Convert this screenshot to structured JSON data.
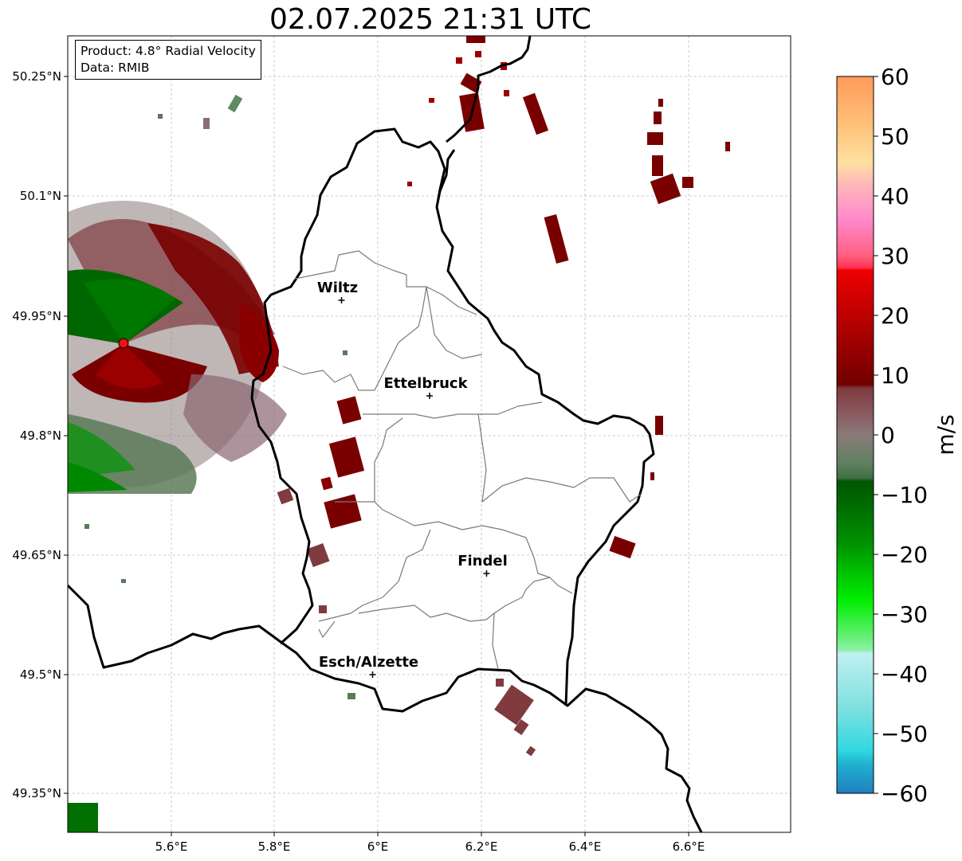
{
  "title": "02.07.2025 21:31 UTC",
  "info": {
    "product": "Product: 4.8° Radial Velocity",
    "source": "Data: RMIB"
  },
  "axes": {
    "lat_ticks": [
      "50.25°N",
      "50.1°N",
      "49.95°N",
      "49.8°N",
      "49.65°N",
      "49.5°N",
      "49.35°N"
    ],
    "lon_ticks": [
      "5.6°E",
      "5.8°E",
      "6°E",
      "6.2°E",
      "6.4°E",
      "6.6°E"
    ],
    "grid": true
  },
  "cities": [
    {
      "name": "Wiltz",
      "lon": 5.93,
      "lat": 49.97
    },
    {
      "name": "Ettelbruck",
      "lon": 6.1,
      "lat": 49.85
    },
    {
      "name": "Findel",
      "lon": 6.21,
      "lat": 49.627
    },
    {
      "name": "Esch/Alzette",
      "lon": 5.99,
      "lat": 49.5
    }
  ],
  "colorbar": {
    "label": "m/s",
    "min": -60,
    "max": 60,
    "ticks": [
      "60",
      "50",
      "40",
      "30",
      "20",
      "10",
      "0",
      "−10",
      "−20",
      "−30",
      "−40",
      "−50",
      "−60"
    ]
  },
  "colors": {
    "approaching": "#007800",
    "receding": "#7a0000",
    "near_zero": "#8a6f70",
    "radar_site": "#ee1111"
  }
}
